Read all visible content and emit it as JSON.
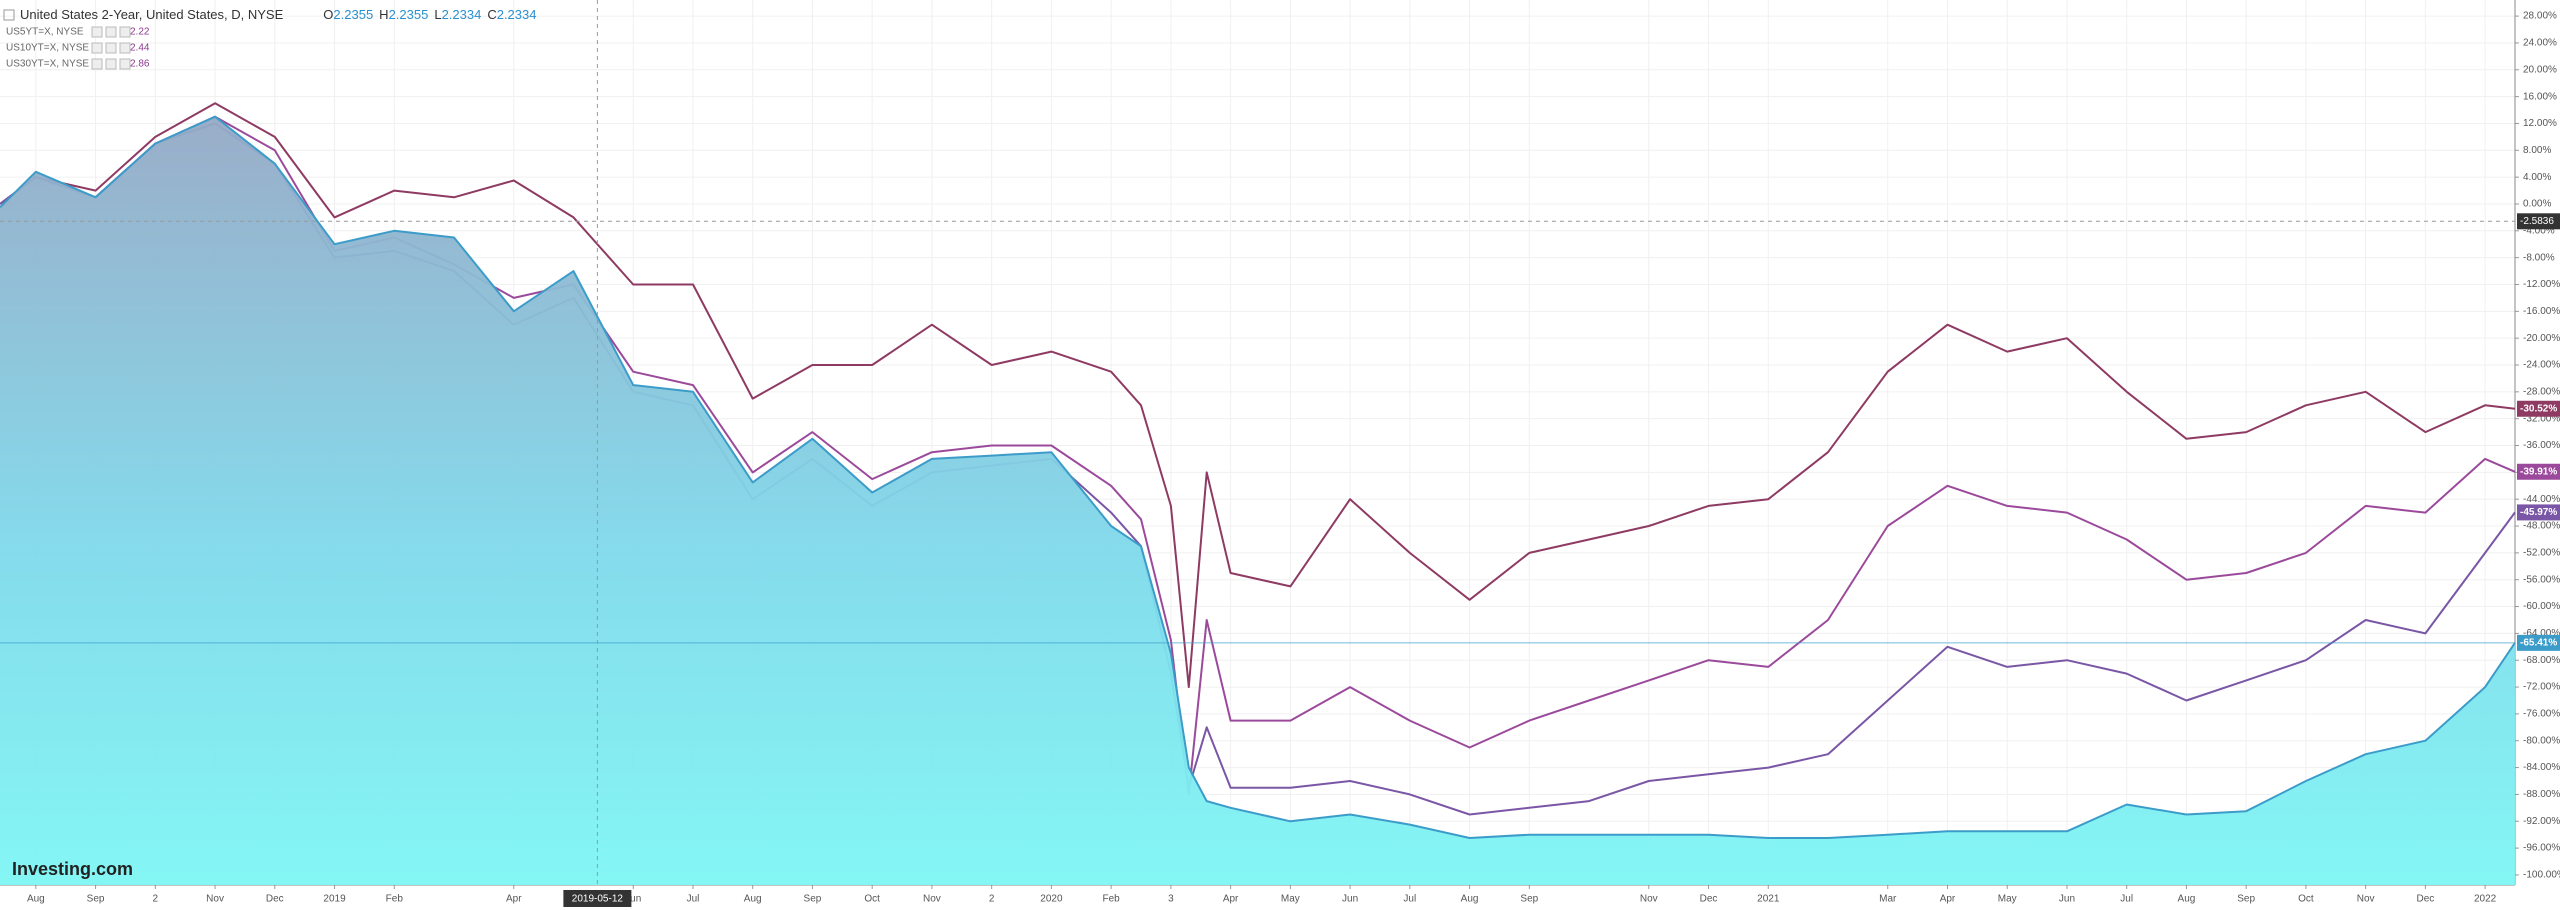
{
  "chart_data": {
    "type": "line",
    "title": "United States 2-Year, United States, D, NYSE",
    "ohlc": [
      {
        "key": "O",
        "value": 2.2355
      },
      {
        "key": "H",
        "value": 2.2355
      },
      {
        "key": "L",
        "value": 2.2334
      },
      {
        "key": "C",
        "value": 2.2334
      }
    ],
    "legend": [
      {
        "name": "US5YT=X, NYSE",
        "value": 2.22
      },
      {
        "name": "US10YT=X, NYSE",
        "value": 2.44
      },
      {
        "name": "US30YT=X, NYSE",
        "value": 2.86
      }
    ],
    "brand": "Investing.com",
    "x": [
      -0.6,
      0,
      1,
      2,
      3,
      4,
      5,
      6,
      7,
      8,
      9,
      10,
      11,
      12,
      13,
      14,
      15,
      16,
      17,
      18,
      18.5,
      19,
      19.3,
      19.6,
      20,
      21,
      22,
      23,
      24,
      25,
      26,
      27,
      28,
      29,
      30,
      31,
      32,
      33,
      34,
      35,
      36,
      37,
      38,
      39,
      40,
      41,
      41.5
    ],
    "series": [
      {
        "name": "United States 2-Year",
        "color": "#3c9cc9",
        "area": true,
        "last_label": "-65.41%",
        "values": [
          -0.5,
          4.8,
          1,
          9,
          13,
          6,
          -6,
          -4,
          -5,
          -16,
          -10,
          -27,
          -28,
          -41.5,
          -35,
          -43,
          -38,
          -37.5,
          -37,
          -48,
          -51,
          -67,
          -84,
          -89,
          -90,
          -92,
          -91,
          -92.5,
          -94.5,
          -94,
          -94,
          -94,
          -94,
          -94.5,
          -94.5,
          -94,
          -93.5,
          -93.5,
          -93.5,
          -89.5,
          -91,
          -90.5,
          -86,
          -82,
          -80,
          -72,
          -65.41
        ]
      },
      {
        "name": "US5YT=X, NYSE",
        "color": "#7a56a6",
        "area": false,
        "last_label": "-45.97%",
        "values": [
          0,
          4,
          1,
          9,
          12,
          6,
          -8,
          -7,
          -10,
          -18,
          -14,
          -28,
          -30,
          -44,
          -38,
          -45,
          -40,
          -39,
          -38,
          -46,
          -51,
          -70,
          -87,
          -78,
          -87,
          -87,
          -86,
          -88,
          -91,
          -90,
          -89,
          -86,
          -85,
          -84,
          -82,
          -74,
          -66,
          -69,
          -68,
          -70,
          -74,
          -71,
          -68,
          -62,
          -64,
          -52,
          -45.97
        ]
      },
      {
        "name": "US10YT=X, NYSE",
        "color": "#9b4a9b",
        "area": false,
        "last_label": "-39.91%",
        "values": [
          0,
          4,
          1,
          9,
          13,
          8,
          -7,
          -5,
          -9,
          -14,
          -12,
          -25,
          -27,
          -40,
          -34,
          -41,
          -37,
          -36,
          -36,
          -42,
          -47,
          -65,
          -88,
          -62,
          -77,
          -77,
          -72,
          -77,
          -81,
          -77,
          -74,
          -71,
          -68,
          -69,
          -62,
          -48,
          -42,
          -45,
          -46,
          -50,
          -56,
          -55,
          -52,
          -45,
          -46,
          -38,
          -39.91
        ]
      },
      {
        "name": "US30YT=X, NYSE",
        "color": "#8e3a62",
        "area": false,
        "last_label": "-30.52%",
        "values": [
          0,
          4,
          2,
          10,
          15,
          10,
          -2,
          2,
          1,
          3.5,
          -2,
          -12,
          -12,
          -29,
          -24,
          -24,
          -18,
          -24,
          -22,
          -25,
          -30,
          -45,
          -72,
          -40,
          -55,
          -57,
          -44,
          -52,
          -59,
          -52,
          -50,
          -48,
          -45,
          -44,
          -37,
          -25,
          -18,
          -22,
          -20,
          -28,
          -35,
          -34,
          -30,
          -28,
          -34,
          -30,
          -30.52
        ]
      }
    ],
    "xlim": [
      -0.6,
      41.5
    ],
    "xticks": [
      {
        "value": 0,
        "label": "Aug"
      },
      {
        "value": 1,
        "label": "Sep"
      },
      {
        "value": 2,
        "label": "2"
      },
      {
        "value": 3,
        "label": "Nov"
      },
      {
        "value": 4,
        "label": "Dec"
      },
      {
        "value": 5,
        "label": "2019"
      },
      {
        "value": 6,
        "label": "Feb"
      },
      {
        "value": 8,
        "label": "Apr"
      },
      {
        "value": 10,
        "label": "Jun"
      },
      {
        "value": 11,
        "label": "Jul"
      },
      {
        "value": 12,
        "label": "Aug"
      },
      {
        "value": 13,
        "label": "Sep"
      },
      {
        "value": 14,
        "label": "Oct"
      },
      {
        "value": 15,
        "label": "Nov"
      },
      {
        "value": 16,
        "label": "2"
      },
      {
        "value": 17,
        "label": "2020"
      },
      {
        "value": 18,
        "label": "Feb"
      },
      {
        "value": 19,
        "label": "3"
      },
      {
        "value": 20,
        "label": "Apr"
      },
      {
        "value": 21,
        "label": "May"
      },
      {
        "value": 22,
        "label": "Jun"
      },
      {
        "value": 23,
        "label": "Jul"
      },
      {
        "value": 24,
        "label": "Aug"
      },
      {
        "value": 25,
        "label": "Sep"
      },
      {
        "value": 27,
        "label": "Nov"
      },
      {
        "value": 28,
        "label": "Dec"
      },
      {
        "value": 29,
        "label": "2021"
      },
      {
        "value": 31,
        "label": "Mar"
      },
      {
        "value": 32,
        "label": "Apr"
      },
      {
        "value": 33,
        "label": "May"
      },
      {
        "value": 34,
        "label": "Jun"
      },
      {
        "value": 35,
        "label": "Jul"
      },
      {
        "value": 36,
        "label": "Aug"
      },
      {
        "value": 37,
        "label": "Sep"
      },
      {
        "value": 38,
        "label": "Oct"
      },
      {
        "value": 39,
        "label": "Nov"
      },
      {
        "value": 40,
        "label": "Dec"
      },
      {
        "value": 41,
        "label": "2022"
      }
    ],
    "ylim": [
      -101.5,
      30.4
    ],
    "yticks": [
      {
        "value": 28,
        "label": "28.00%"
      },
      {
        "value": 24,
        "label": "24.00%"
      },
      {
        "value": 20,
        "label": "20.00%"
      },
      {
        "value": 16,
        "label": "16.00%"
      },
      {
        "value": 12,
        "label": "12.00%"
      },
      {
        "value": 8,
        "label": "8.00%"
      },
      {
        "value": 4,
        "label": "4.00%"
      },
      {
        "value": 0,
        "label": "0.00%"
      },
      {
        "value": -4,
        "label": "-4.00%"
      },
      {
        "value": -8,
        "label": "-8.00%"
      },
      {
        "value": -12,
        "label": "-12.00%"
      },
      {
        "value": -16,
        "label": "-16.00%"
      },
      {
        "value": -20,
        "label": "-20.00%"
      },
      {
        "value": -24,
        "label": "-24.00%"
      },
      {
        "value": -28,
        "label": "-28.00%"
      },
      {
        "value": -32,
        "label": "-32.00%"
      },
      {
        "value": -36,
        "label": "-36.00%"
      },
      {
        "value": -40,
        "label": "-40.00%"
      },
      {
        "value": -44,
        "label": "-44.00%"
      },
      {
        "value": -48,
        "label": "-48.00%"
      },
      {
        "value": -52,
        "label": "-52.00%"
      },
      {
        "value": -56,
        "label": "-56.00%"
      },
      {
        "value": -60,
        "label": "-60.00%"
      },
      {
        "value": -64,
        "label": "-64.00%"
      },
      {
        "value": -68,
        "label": "-68.00%"
      },
      {
        "value": -72,
        "label": "-72.00%"
      },
      {
        "value": -76,
        "label": "-76.00%"
      },
      {
        "value": -80,
        "label": "-80.00%"
      },
      {
        "value": -84,
        "label": "-84.00%"
      },
      {
        "value": -88,
        "label": "-88.00%"
      },
      {
        "value": -92,
        "label": "-92.00%"
      },
      {
        "value": -96,
        "label": "-96.00%"
      },
      {
        "value": -100,
        "label": "-100.00%"
      }
    ],
    "grid": true,
    "crosshair": {
      "x": {
        "value": 9.4,
        "label": "2019-05-12"
      },
      "y": {
        "value": -2.5836,
        "label": "-2.5836"
      }
    }
  }
}
